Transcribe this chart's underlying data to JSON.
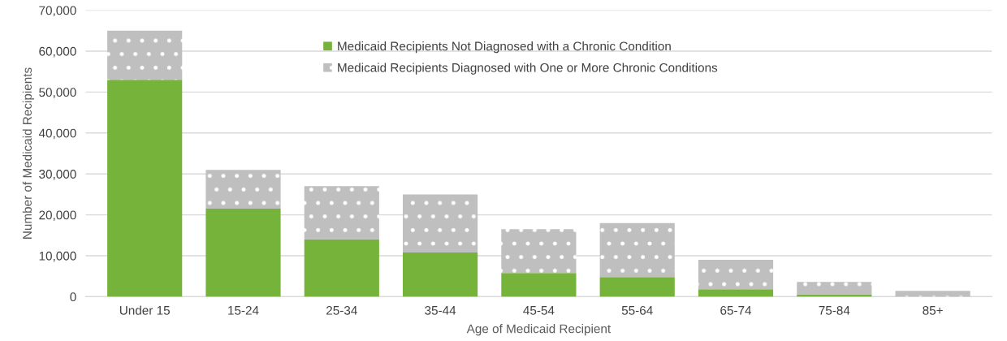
{
  "chart_data": {
    "type": "bar",
    "stacked": true,
    "xlabel": "Age of Medicaid Recipient",
    "ylabel": "Number of Medicaid Recipients",
    "categories": [
      "Under 15",
      "15-24",
      "25-34",
      "35-44",
      "45-54",
      "55-64",
      "65-74",
      "75-84",
      "85+"
    ],
    "series": [
      {
        "name": "Medicaid Recipients Not Diagnosed with a Chronic Condition",
        "color": "#76b33a",
        "values": [
          53000,
          21500,
          14000,
          10800,
          5800,
          4800,
          1800,
          600,
          0
        ]
      },
      {
        "name": "Medicaid Recipients Diagnosed with One or More Chronic Conditions",
        "color": "#bfbfbf",
        "values": [
          12000,
          9500,
          13000,
          14200,
          10700,
          13200,
          7200,
          3000,
          1400
        ]
      }
    ],
    "ylim": [
      0,
      70000
    ],
    "yticks": [
      {
        "value": 0,
        "label": "0"
      },
      {
        "value": 10000,
        "label": "10,000"
      },
      {
        "value": 20000,
        "label": "20,000"
      },
      {
        "value": 30000,
        "label": "30,000"
      },
      {
        "value": 40000,
        "label": "40,000"
      },
      {
        "value": 50000,
        "label": "50,000"
      },
      {
        "value": 60000,
        "label": "60,000"
      },
      {
        "value": 70000,
        "label": "70,000"
      }
    ],
    "grid": "y",
    "legend": "top"
  }
}
